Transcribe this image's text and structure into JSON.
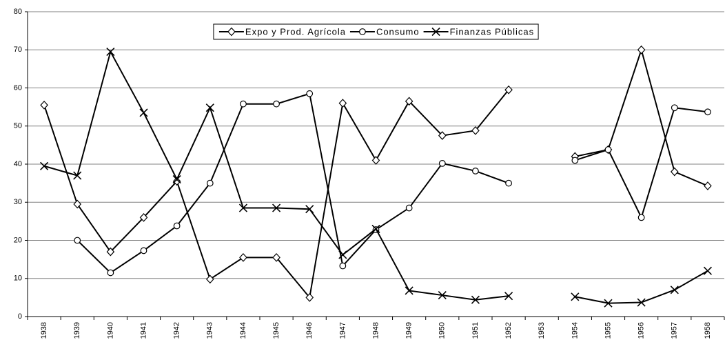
{
  "chart_data": {
    "type": "line",
    "categories": [
      "1938",
      "1939",
      "1940",
      "1941",
      "1942",
      "1943",
      "1944",
      "1945",
      "1946",
      "1947",
      "1948",
      "1949",
      "1950",
      "1951",
      "1952",
      "1953",
      "1954",
      "1955",
      "1956",
      "1957",
      "1958"
    ],
    "series": [
      {
        "name": "Expo y Prod. Agrícola",
        "color": "#000000",
        "marker": "diamond",
        "values": [
          55.5,
          29.5,
          17,
          26,
          35.5,
          9.8,
          15.5,
          15.5,
          5,
          56,
          41,
          56.5,
          47.5,
          48.8,
          59.5,
          null,
          42,
          43.8,
          70,
          38,
          34.3
        ]
      },
      {
        "name": "Consumo",
        "color": "#000000",
        "marker": "circle",
        "values": [
          null,
          20,
          11.5,
          17.3,
          23.8,
          35,
          55.8,
          55.8,
          58.5,
          13.3,
          22.8,
          28.5,
          40.2,
          38.2,
          35,
          null,
          41,
          43.8,
          26,
          54.8,
          53.7
        ]
      },
      {
        "name": "Finanzas Públicas",
        "color": "#000000",
        "marker": "x",
        "values": [
          39.5,
          37,
          69.5,
          53.5,
          36,
          54.8,
          28.5,
          28.5,
          28.2,
          16.2,
          23,
          6.8,
          5.6,
          4.4,
          5.4,
          null,
          5.2,
          3.5,
          3.7,
          7,
          12
        ]
      }
    ],
    "ylim": [
      0,
      80
    ],
    "yticks": [
      0,
      10,
      20,
      30,
      40,
      50,
      60,
      70,
      80
    ],
    "grid": true,
    "legend": "top"
  }
}
